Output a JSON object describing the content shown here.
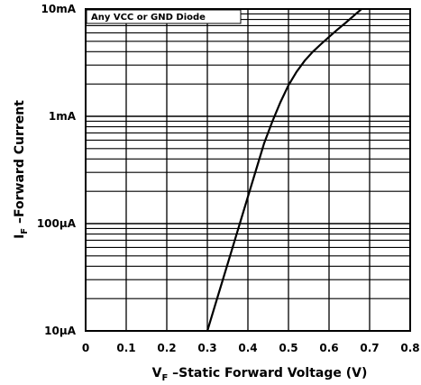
{
  "chart_data": {
    "type": "line",
    "title": "",
    "annotation": "Any VCC or GND Diode",
    "xlabel": {
      "main": "V",
      "sub": "F",
      "rest": " –Static  Forward  Voltage  (V)"
    },
    "ylabel": {
      "main": "I",
      "sub": "F",
      "rest": " –Forward  Current"
    },
    "x_ticks": [
      "0",
      "0.1",
      "0.2",
      "0.3",
      "0.4",
      "0.5",
      "0.6",
      "0.7",
      "0.8"
    ],
    "y_ticks": [
      "10mA",
      "1mA",
      "100µA",
      "10µA"
    ],
    "xlim": [
      0,
      0.8
    ],
    "ylim_amps": [
      1e-05,
      0.01
    ],
    "y_scale": "log",
    "grid": true,
    "series": [
      {
        "x": [
          0.3,
          0.32,
          0.34,
          0.36,
          0.38,
          0.4,
          0.42,
          0.44,
          0.46,
          0.48,
          0.5,
          0.52,
          0.54,
          0.56,
          0.58,
          0.6,
          0.62,
          0.64,
          0.66,
          0.68
        ],
        "y": [
          1e-05,
          1.78e-05,
          3.16e-05,
          5.62e-05,
          0.0001,
          0.000178,
          0.000316,
          0.000562,
          0.00089,
          0.00135,
          0.00195,
          0.0026,
          0.0033,
          0.004,
          0.0047,
          0.0055,
          0.0064,
          0.0074,
          0.0086,
          0.01
        ]
      }
    ]
  }
}
